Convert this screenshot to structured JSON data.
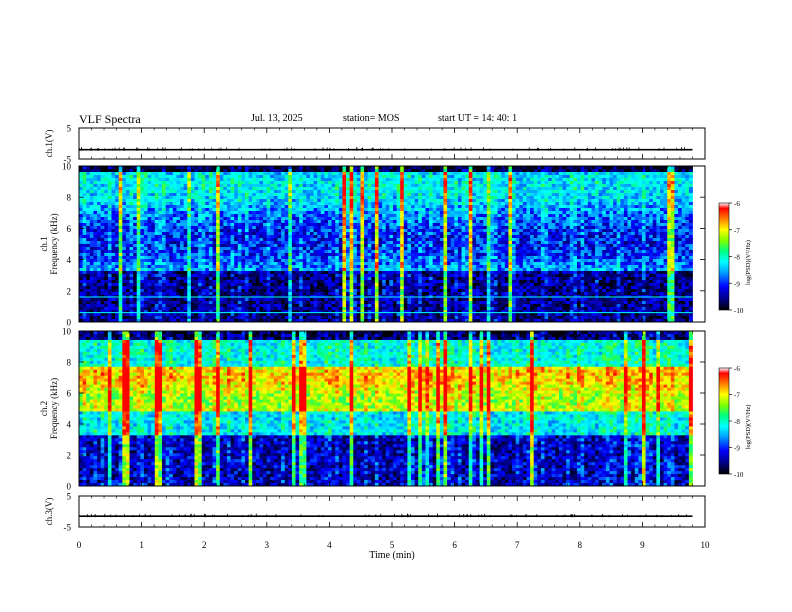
{
  "header": {
    "title": "VLF Spectra",
    "date": "Jul. 13, 2025",
    "station": "station= MOS",
    "start_ut": "start UT =  14: 40: 1"
  },
  "colors": {
    "background": "#ffffff",
    "colormap": [
      "#000000",
      "#000080",
      "#0000ff",
      "#00a0ff",
      "#00ffff",
      "#00ff80",
      "#80ff00",
      "#ffff00",
      "#ff8000",
      "#ff0000",
      "#ffffff"
    ]
  },
  "chart_data": [
    {
      "type": "line",
      "panel": "ch1-waveform",
      "ylabel": "ch.1(V)",
      "ylim": [
        -5,
        5
      ],
      "yticks": [
        "5",
        "-5"
      ],
      "xlim": [
        0,
        10
      ],
      "series": [
        {
          "x": [
            0,
            9.8
          ],
          "values": [
            -2,
            -2
          ]
        }
      ]
    },
    {
      "type": "heatmap",
      "panel": "ch1-spectrogram",
      "ylabel": "ch.1\nFrequency (kHz)",
      "ylim": [
        0,
        10
      ],
      "yticks": [
        "0",
        "2",
        "4",
        "6",
        "8",
        "10"
      ],
      "xlim": [
        0,
        10
      ],
      "data_end_min": 9.8,
      "color_range": [
        -10,
        -6
      ],
      "colorbar_label": "log(PSD)(V²/Hz)",
      "colorbar_ticks": [
        "-6",
        "-7",
        "-8",
        "-9",
        "-10"
      ],
      "dominant_band_khz": [
        3,
        9.5
      ],
      "horizontal_lines_khz": [
        0.6,
        1.6
      ]
    },
    {
      "type": "heatmap",
      "panel": "ch2-spectrogram",
      "ylabel": "ch.2\nFrequency (kHz)",
      "ylim": [
        0,
        10
      ],
      "yticks": [
        "0",
        "2",
        "4",
        "6",
        "8",
        "10"
      ],
      "xlim": [
        0,
        10
      ],
      "data_end_min": 9.8,
      "color_range": [
        -10,
        -6
      ],
      "colorbar_label": "log(PSD)(V²/Hz)",
      "colorbar_ticks": [
        "-6",
        "-7",
        "-8",
        "-9",
        "-10"
      ],
      "dominant_band_khz": [
        5,
        7.5
      ]
    },
    {
      "type": "line",
      "panel": "ch3-waveform",
      "ylabel": "ch.3(V)",
      "ylim": [
        -5,
        5
      ],
      "yticks": [
        "5",
        "-5"
      ],
      "xlim": [
        0,
        10
      ],
      "xlabel": "Time (min)",
      "xticks": [
        "0",
        "1",
        "2",
        "3",
        "4",
        "5",
        "6",
        "7",
        "8",
        "9",
        "10"
      ],
      "series": [
        {
          "x": [
            0,
            9.8
          ],
          "values": [
            -1.5,
            -1.5
          ]
        }
      ]
    }
  ]
}
